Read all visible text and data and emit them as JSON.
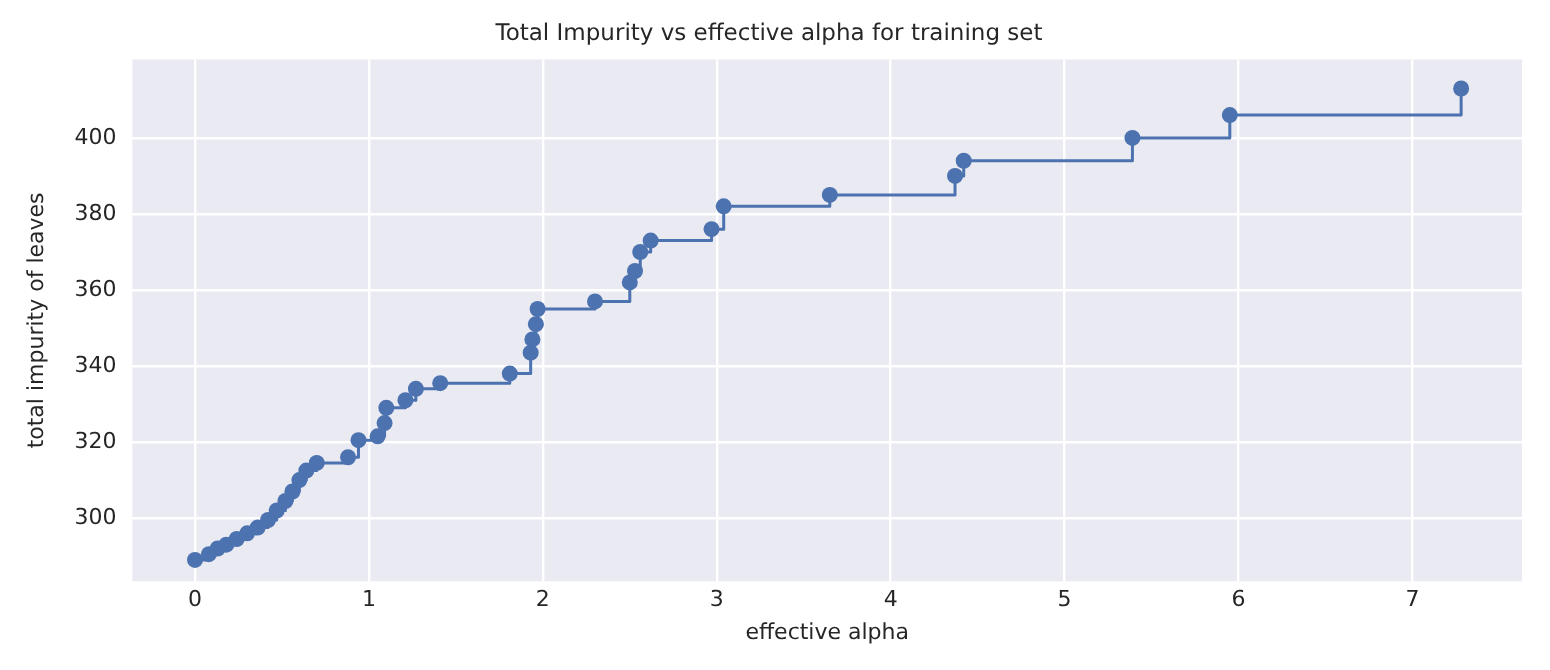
{
  "chart_data": {
    "type": "step",
    "title": "Total Impurity vs effective alpha for training set",
    "xlabel": "effective alpha",
    "ylabel": "total impurity of leaves",
    "x": [
      0,
      0.08,
      0.13,
      0.18,
      0.24,
      0.3,
      0.36,
      0.42,
      0.47,
      0.52,
      0.56,
      0.6,
      0.64,
      0.7,
      0.88,
      0.94,
      1.05,
      1.09,
      1.1,
      1.21,
      1.27,
      1.41,
      1.81,
      1.93,
      1.94,
      1.96,
      1.97,
      2.3,
      2.5,
      2.53,
      2.56,
      2.62,
      2.97,
      3.04,
      3.65,
      4.37,
      4.42,
      5.39,
      5.95,
      7.28
    ],
    "series": [
      {
        "color": "#4c72b0",
        "values": [
          289,
          290.5,
          292,
          293,
          294.5,
          296,
          297.5,
          299.5,
          302,
          304.5,
          307,
          310,
          312.5,
          314.5,
          316,
          320.5,
          321.5,
          325,
          329,
          331,
          334,
          335.5,
          338,
          343.5,
          347,
          351,
          355,
          357,
          362,
          365,
          370,
          373,
          376,
          382,
          385,
          390,
          394,
          400,
          406,
          413
        ]
      }
    ],
    "xlim": [
      -0.36,
      7.63
    ],
    "ylim": [
      283.4,
      420.6
    ],
    "xticks": [
      0,
      1,
      2,
      3,
      4,
      5,
      6,
      7
    ],
    "yticks": [
      300,
      320,
      340,
      360,
      380,
      400
    ],
    "grid": true,
    "marker": "circle",
    "line_style": "solid"
  }
}
